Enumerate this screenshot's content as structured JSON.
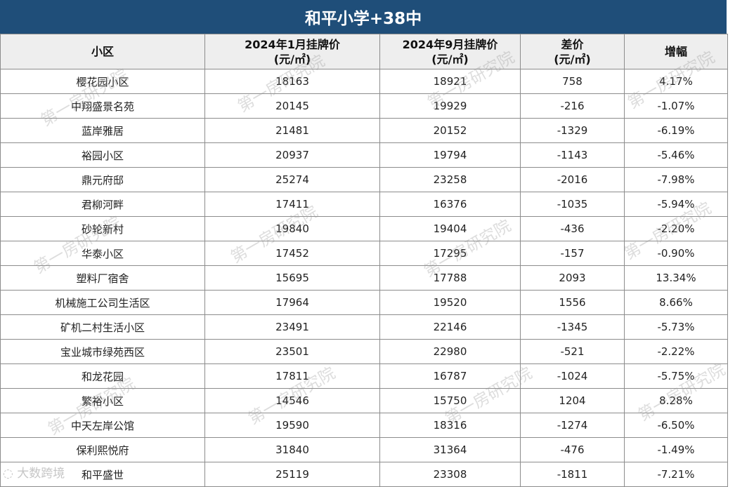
{
  "title": "和平小学+38中",
  "headers": [
    {
      "line1": "小区",
      "line2": ""
    },
    {
      "line1": "2024年1月挂牌价",
      "line2": "(元/㎡)"
    },
    {
      "line1": "2024年9月挂牌价",
      "line2": "(元/㎡)"
    },
    {
      "line1": "差价",
      "line2": "(元/㎡)"
    },
    {
      "line1": "增幅",
      "line2": ""
    }
  ],
  "rows": [
    {
      "name": "樱花园小区",
      "jan": "18163",
      "sep": "18921",
      "diff": "758",
      "pct": "4.17%",
      "trend": "pos"
    },
    {
      "name": "中翔盛景名苑",
      "jan": "20145",
      "sep": "19929",
      "diff": "-216",
      "pct": "-1.07%",
      "trend": "neg"
    },
    {
      "name": "蓝岸雅居",
      "jan": "21481",
      "sep": "20152",
      "diff": "-1329",
      "pct": "-6.19%",
      "trend": "neg"
    },
    {
      "name": "裕园小区",
      "jan": "20937",
      "sep": "19794",
      "diff": "-1143",
      "pct": "-5.46%",
      "trend": "neg"
    },
    {
      "name": "鼎元府邸",
      "jan": "25274",
      "sep": "23258",
      "diff": "-2016",
      "pct": "-7.98%",
      "trend": "neg"
    },
    {
      "name": "君柳河畔",
      "jan": "17411",
      "sep": "16376",
      "diff": "-1035",
      "pct": "-5.94%",
      "trend": "neg"
    },
    {
      "name": "砂轮新村",
      "jan": "19840",
      "sep": "19404",
      "diff": "-436",
      "pct": "-2.20%",
      "trend": "neg"
    },
    {
      "name": "华泰小区",
      "jan": "17452",
      "sep": "17295",
      "diff": "-157",
      "pct": "-0.90%",
      "trend": "neg"
    },
    {
      "name": "塑料厂宿舍",
      "jan": "15695",
      "sep": "17788",
      "diff": "2093",
      "pct": "13.34%",
      "trend": "pos"
    },
    {
      "name": "机械施工公司生活区",
      "jan": "17964",
      "sep": "19520",
      "diff": "1556",
      "pct": "8.66%",
      "trend": "pos"
    },
    {
      "name": "矿机二村生活小区",
      "jan": "23491",
      "sep": "22146",
      "diff": "-1345",
      "pct": "-5.73%",
      "trend": "neg"
    },
    {
      "name": "宝业城市绿苑西区",
      "jan": "23501",
      "sep": "22980",
      "diff": "-521",
      "pct": "-2.22%",
      "trend": "neg"
    },
    {
      "name": "和龙花园",
      "jan": "17811",
      "sep": "16787",
      "diff": "-1024",
      "pct": "-5.75%",
      "trend": "neg"
    },
    {
      "name": "繁裕小区",
      "jan": "14546",
      "sep": "15750",
      "diff": "1204",
      "pct": "8.28%",
      "trend": "pos"
    },
    {
      "name": "中天左岸公馆",
      "jan": "19590",
      "sep": "18316",
      "diff": "-1274",
      "pct": "-6.50%",
      "trend": "neg"
    },
    {
      "name": "保利熙悦府",
      "jan": "31840",
      "sep": "31364",
      "diff": "-476",
      "pct": "-1.49%",
      "trend": "neg"
    },
    {
      "name": "和平盛世",
      "jan": "25119",
      "sep": "23308",
      "diff": "-1811",
      "pct": "-7.21%",
      "trend": "neg"
    }
  ],
  "watermark_text": "第一房研究院",
  "brand_text": "大数跨境",
  "colors": {
    "title_bg": "#1f4e79",
    "header_bg": "#eeeeee",
    "positive": "#e0262a",
    "negative": "#2e9e44"
  }
}
